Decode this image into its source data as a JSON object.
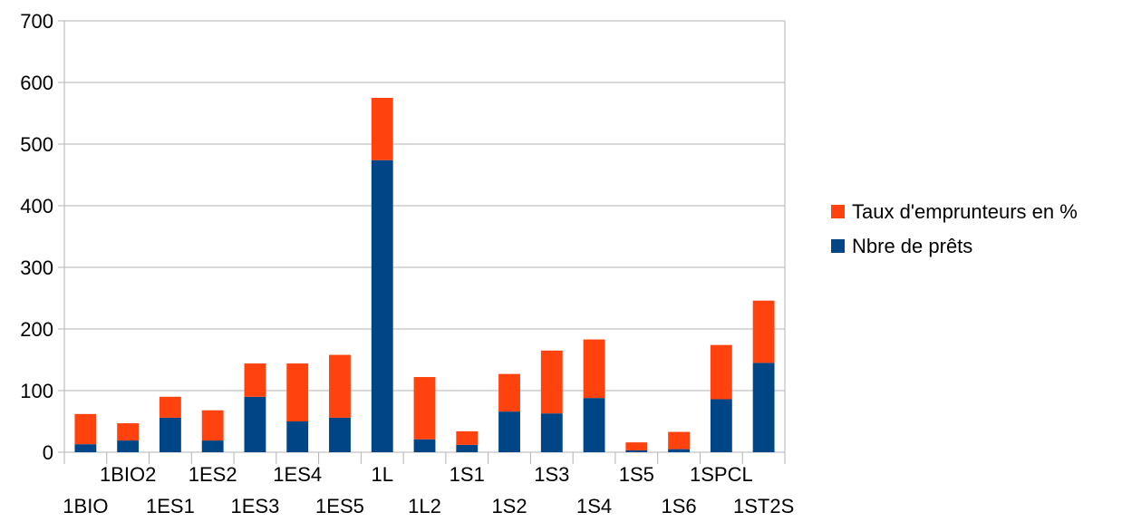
{
  "chart_data": {
    "type": "bar",
    "stacked": true,
    "categories": [
      "1BIO",
      "1BIO2",
      "1ES1",
      "1ES2",
      "1ES3",
      "1ES4",
      "1ES5",
      "1L",
      "1L2",
      "1S1",
      "1S2",
      "1S3",
      "1S4",
      "1S5",
      "1S6",
      "1SPCL",
      "1ST2S"
    ],
    "series": [
      {
        "name": "Nbre de prêts",
        "color": "#004586",
        "values": [
          13,
          19,
          56,
          19,
          90,
          50,
          56,
          474,
          21,
          12,
          66,
          63,
          88,
          3,
          5,
          86,
          145
        ]
      },
      {
        "name": "Taux d'emprunteurs en %",
        "color": "#ff420e",
        "values": [
          49,
          28,
          34,
          49,
          54,
          94,
          102,
          101,
          101,
          22,
          61,
          102,
          95,
          13,
          28,
          88,
          101
        ]
      }
    ],
    "ylim": [
      0,
      700
    ],
    "yticks": [
      0,
      100,
      200,
      300,
      400,
      500,
      600,
      700
    ],
    "grid": true,
    "legend_position": "right",
    "legend_order": [
      "Taux d'emprunteurs en %",
      "Nbre de prêts"
    ],
    "title": "",
    "xlabel": "",
    "ylabel": ""
  }
}
